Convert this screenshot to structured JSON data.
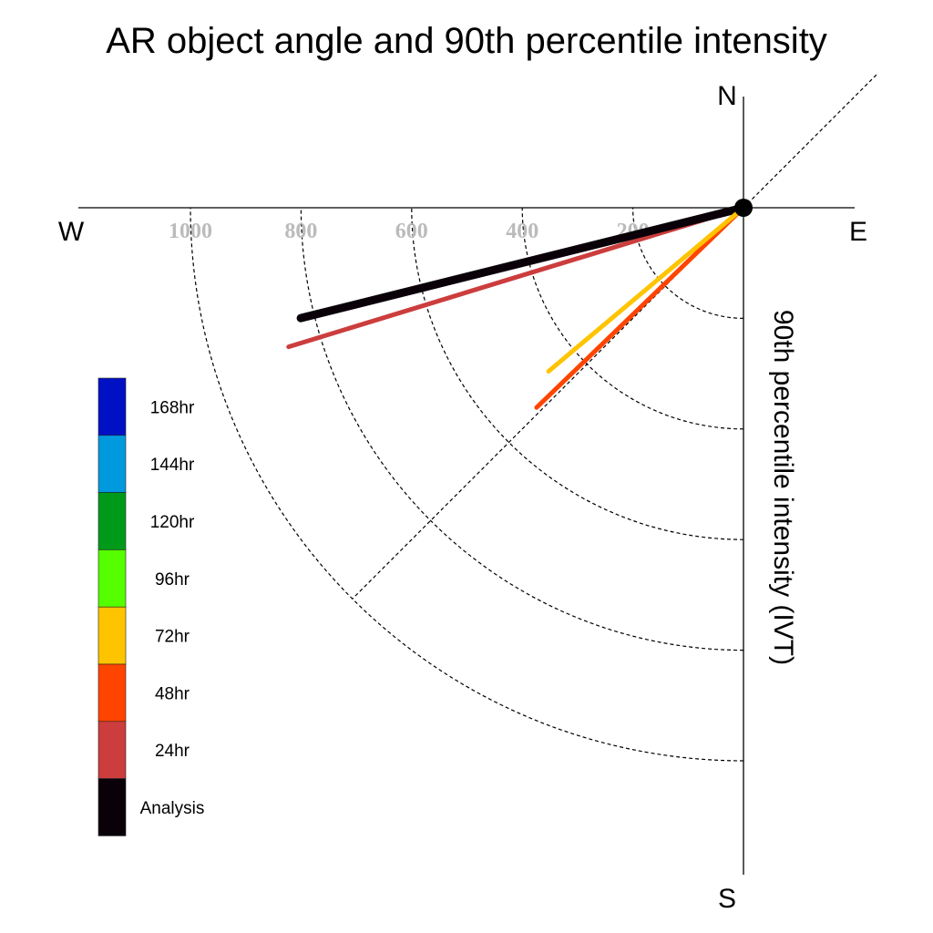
{
  "chart_data": {
    "type": "polar-vector",
    "title": "AR object angle and 90th percentile intensity",
    "compass": {
      "north": "N",
      "south": "S",
      "east": "E",
      "west": "W"
    },
    "radial_label": "90th percentile intensity (IVT)",
    "radial_ticks": [
      200,
      400,
      600,
      800,
      1000
    ],
    "radial_tick_labels": [
      "200",
      "400",
      "600",
      "800",
      "1000"
    ],
    "series": [
      {
        "name": "24hr",
        "color": "#cc3d3d",
        "angle_deg": 253,
        "intensity": 860
      },
      {
        "name": "Analysis",
        "color": "#0a0008",
        "angle_deg": 256,
        "intensity": 825
      },
      {
        "name": "48hr",
        "color": "#ff4400",
        "angle_deg": 226,
        "intensity": 520
      },
      {
        "name": "72hr",
        "color": "#ffc400",
        "angle_deg": 230,
        "intensity": 460
      }
    ],
    "legend": [
      {
        "label": "168hr",
        "color": "#0011c4"
      },
      {
        "label": "144hr",
        "color": "#0099dd"
      },
      {
        "label": "120hr",
        "color": "#009a1a"
      },
      {
        "label": "96hr",
        "color": "#55ff00"
      },
      {
        "label": "72hr",
        "color": "#ffc400"
      },
      {
        "label": "48hr",
        "color": "#ff4400"
      },
      {
        "label": "24hr",
        "color": "#cc3d3d"
      },
      {
        "label": "Analysis",
        "color": "#0a0008"
      }
    ],
    "diagonal_guide_deg": 45
  }
}
